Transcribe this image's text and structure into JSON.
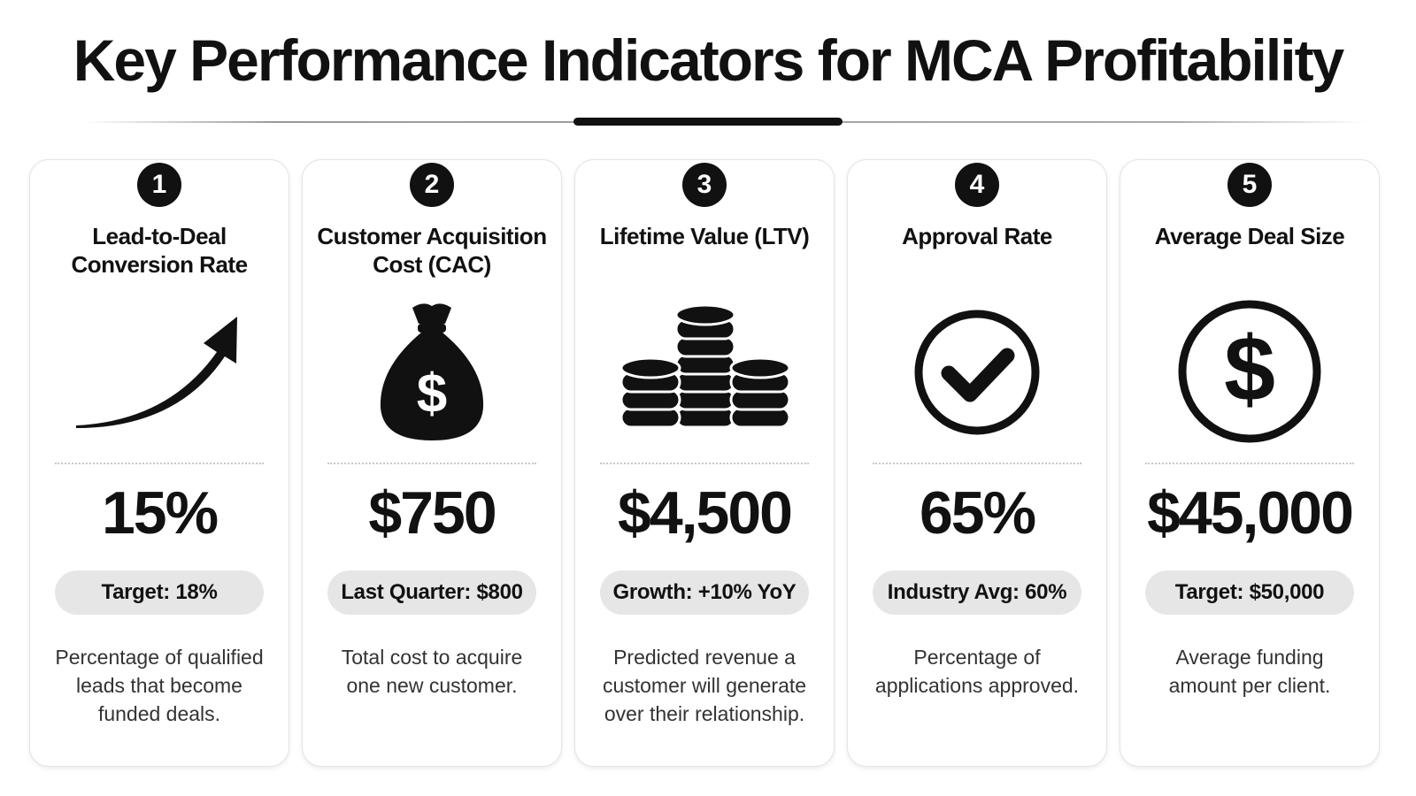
{
  "title": "Key Performance Indicators for MCA Profitability",
  "cards": [
    {
      "number": "1",
      "title": "Lead-to-Deal Conversion Rate",
      "icon": "trend-arrow-icon",
      "value": "15%",
      "badge": "Target: 18%",
      "description": "Percentage of qualified leads that become funded deals."
    },
    {
      "number": "2",
      "title": "Customer Acquisition Cost (CAC)",
      "icon": "money-bag-icon",
      "value": "$750",
      "badge": "Last Quarter: $800",
      "description": "Total cost to acquire one new customer."
    },
    {
      "number": "3",
      "title": "Lifetime Value (LTV)",
      "icon": "coin-stacks-icon",
      "value": "$4,500",
      "badge": "Growth: +10% YoY",
      "description": "Predicted revenue a customer will generate over their relationship."
    },
    {
      "number": "4",
      "title": "Approval Rate",
      "icon": "check-circle-icon",
      "value": "65%",
      "badge": "Industry Avg: 60%",
      "description": "Percentage of applications approved."
    },
    {
      "number": "5",
      "title": "Average Deal Size",
      "icon": "dollar-circle-icon",
      "value": "$45,000",
      "badge": "Target: $50,000",
      "description": "Average funding amount per client."
    }
  ],
  "colors": {
    "ink": "#111111",
    "pill": "#e6e6e6",
    "card_border": "#e3e3e3"
  }
}
